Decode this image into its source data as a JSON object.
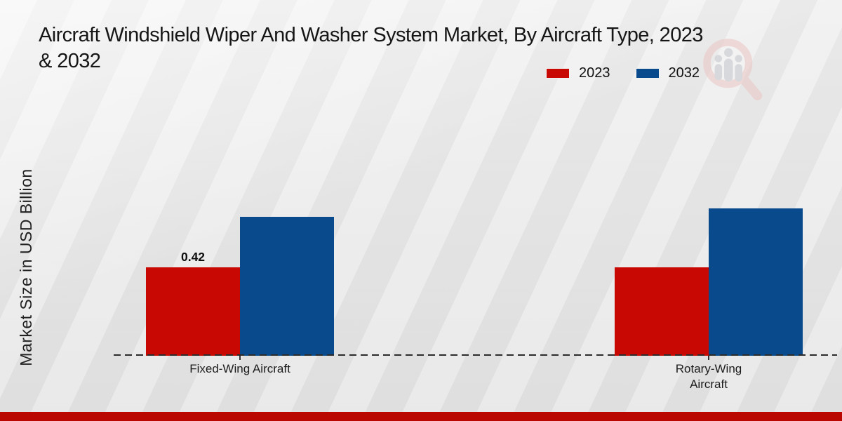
{
  "header": {
    "title_line1": "Aircraft Windshield Wiper And Washer System Market, By Aircraft Type, 2023",
    "title_line2": "& 2032"
  },
  "y_axis_label": "Market Size in USD Billion",
  "legend": {
    "items": [
      {
        "label": "2023",
        "color": "#c80802"
      },
      {
        "label": "2032",
        "color": "#084a8c"
      }
    ]
  },
  "watermark": {
    "name": "magnifier-people-logo",
    "ring_color": "#eac5c2",
    "figure_color": "#c3c6cb"
  },
  "bottom_banner_color": "#bb0701",
  "chart_data": {
    "type": "bar",
    "title": "Aircraft Windshield Wiper And Washer System Market, By Aircraft Type, 2023 & 2032",
    "categories": [
      "Fixed-Wing Aircraft",
      "Rotary-Wing Aircraft"
    ],
    "series": [
      {
        "name": "2023",
        "color": "#c80802",
        "values": [
          0.42,
          0.42
        ]
      },
      {
        "name": "2032",
        "color": "#084a8c",
        "values": [
          0.66,
          0.7
        ]
      }
    ],
    "bar_labels": [
      {
        "series_index": 0,
        "category_index": 0,
        "text": "0.42"
      }
    ],
    "xlabel": "",
    "ylabel": "Market Size in USD Billion",
    "ylim": [
      0,
      0.75
    ],
    "grid": false,
    "y_axis_ticks_visible": false,
    "baseline_style": "dashed",
    "legend_position": "top-right"
  }
}
